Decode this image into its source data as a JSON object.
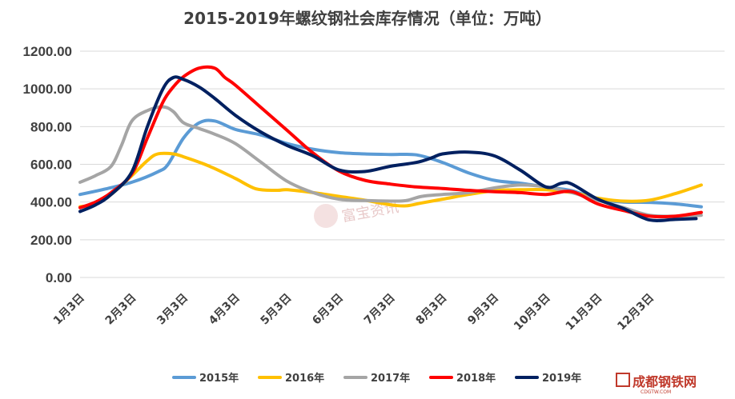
{
  "chart_data": {
    "type": "line",
    "title": "2015-2019年螺纹钢社会库存情况（单位：万吨）",
    "xlabel": "",
    "ylabel": "",
    "ylim": [
      0,
      1200
    ],
    "yticks": [
      "0.00",
      "200.00",
      "400.00",
      "600.00",
      "800.00",
      "1000.00",
      "1200.00"
    ],
    "categories": [
      "1月3日",
      "2月3日",
      "3月3日",
      "4月3日",
      "5月3日",
      "6月3日",
      "7月3日",
      "8月3日",
      "9月3日",
      "10月3日",
      "11月3日",
      "12月3日"
    ],
    "grid": true,
    "legend_position": "bottom",
    "watermark": "富宝资讯",
    "corner_logo": "成都钢铁网",
    "corner_logo_sub": "CDGTW.COM",
    "series": [
      {
        "name": "2015年",
        "color": "#5b9bd5",
        "x": [
          1,
          1.5,
          2,
          2.5,
          2.7,
          3,
          3.3,
          3.6,
          4,
          4.5,
          5,
          5.5,
          6,
          6.5,
          7,
          7.5,
          8,
          8.5,
          9,
          9.5,
          10,
          10.5,
          11,
          11.5,
          12,
          12.5,
          13
        ],
        "values": [
          440,
          470,
          505,
          560,
          600,
          740,
          820,
          830,
          785,
          755,
          710,
          680,
          662,
          655,
          652,
          650,
          610,
          555,
          515,
          500,
          480,
          460,
          415,
          400,
          398,
          390,
          375
        ]
      },
      {
        "name": "2016年",
        "color": "#ffc000",
        "x": [
          1,
          1.3,
          1.6,
          2,
          2.3,
          2.5,
          2.8,
          3,
          3.5,
          4,
          4.4,
          4.8,
          5,
          5.5,
          6,
          6.5,
          7,
          7.3,
          7.6,
          8,
          8.5,
          9,
          9.5,
          10,
          10.5,
          11,
          11.5,
          12,
          12.5,
          13
        ],
        "values": [
          375,
          390,
          440,
          540,
          620,
          655,
          655,
          640,
          590,
          525,
          470,
          462,
          465,
          450,
          430,
          410,
          385,
          380,
          395,
          415,
          440,
          460,
          465,
          465,
          450,
          420,
          405,
          410,
          445,
          490
        ]
      },
      {
        "name": "2017年",
        "color": "#a5a5a5",
        "x": [
          1,
          1.3,
          1.6,
          1.8,
          2,
          2.3,
          2.6,
          2.8,
          3,
          3.3,
          3.6,
          4,
          4.5,
          5,
          5.5,
          6,
          6.5,
          7,
          7.3,
          7.6,
          8,
          8.5,
          9,
          9.5,
          10,
          10.5,
          11,
          11.5,
          12,
          12.5,
          13
        ],
        "values": [
          505,
          540,
          590,
          700,
          830,
          885,
          905,
          880,
          820,
          790,
          760,
          710,
          610,
          510,
          450,
          415,
          408,
          405,
          408,
          430,
          440,
          450,
          475,
          490,
          480,
          450,
          410,
          370,
          330,
          325,
          330
        ]
      },
      {
        "name": "2018年",
        "color": "#ff0000",
        "x": [
          1,
          1.3,
          1.6,
          2,
          2.3,
          2.6,
          2.8,
          3,
          3.3,
          3.6,
          3.8,
          4,
          4.5,
          5,
          5.5,
          6,
          6.5,
          7,
          7.5,
          8,
          8.5,
          9,
          9.5,
          10,
          10.5,
          11,
          11.5,
          12,
          12.5,
          13
        ],
        "values": [
          370,
          400,
          450,
          550,
          740,
          930,
          1010,
          1065,
          1110,
          1110,
          1060,
          1020,
          900,
          780,
          660,
          565,
          515,
          495,
          480,
          472,
          462,
          455,
          450,
          440,
          455,
          390,
          355,
          325,
          325,
          345
        ]
      },
      {
        "name": "2019年",
        "color": "#002060",
        "x": [
          1,
          1.3,
          1.6,
          2,
          2.3,
          2.6,
          2.8,
          3,
          3.3,
          3.6,
          4,
          4.5,
          5,
          5.5,
          6,
          6.5,
          7,
          7.5,
          7.8,
          8,
          8.5,
          9,
          9.5,
          10,
          10.3,
          10.5,
          11,
          11.5,
          12,
          12.5,
          12.9
        ],
        "values": [
          350,
          385,
          440,
          560,
          800,
          1000,
          1060,
          1050,
          1010,
          950,
          860,
          770,
          700,
          645,
          570,
          562,
          590,
          610,
          635,
          655,
          665,
          645,
          570,
          480,
          500,
          495,
          415,
          365,
          305,
          308,
          312
        ]
      }
    ]
  }
}
